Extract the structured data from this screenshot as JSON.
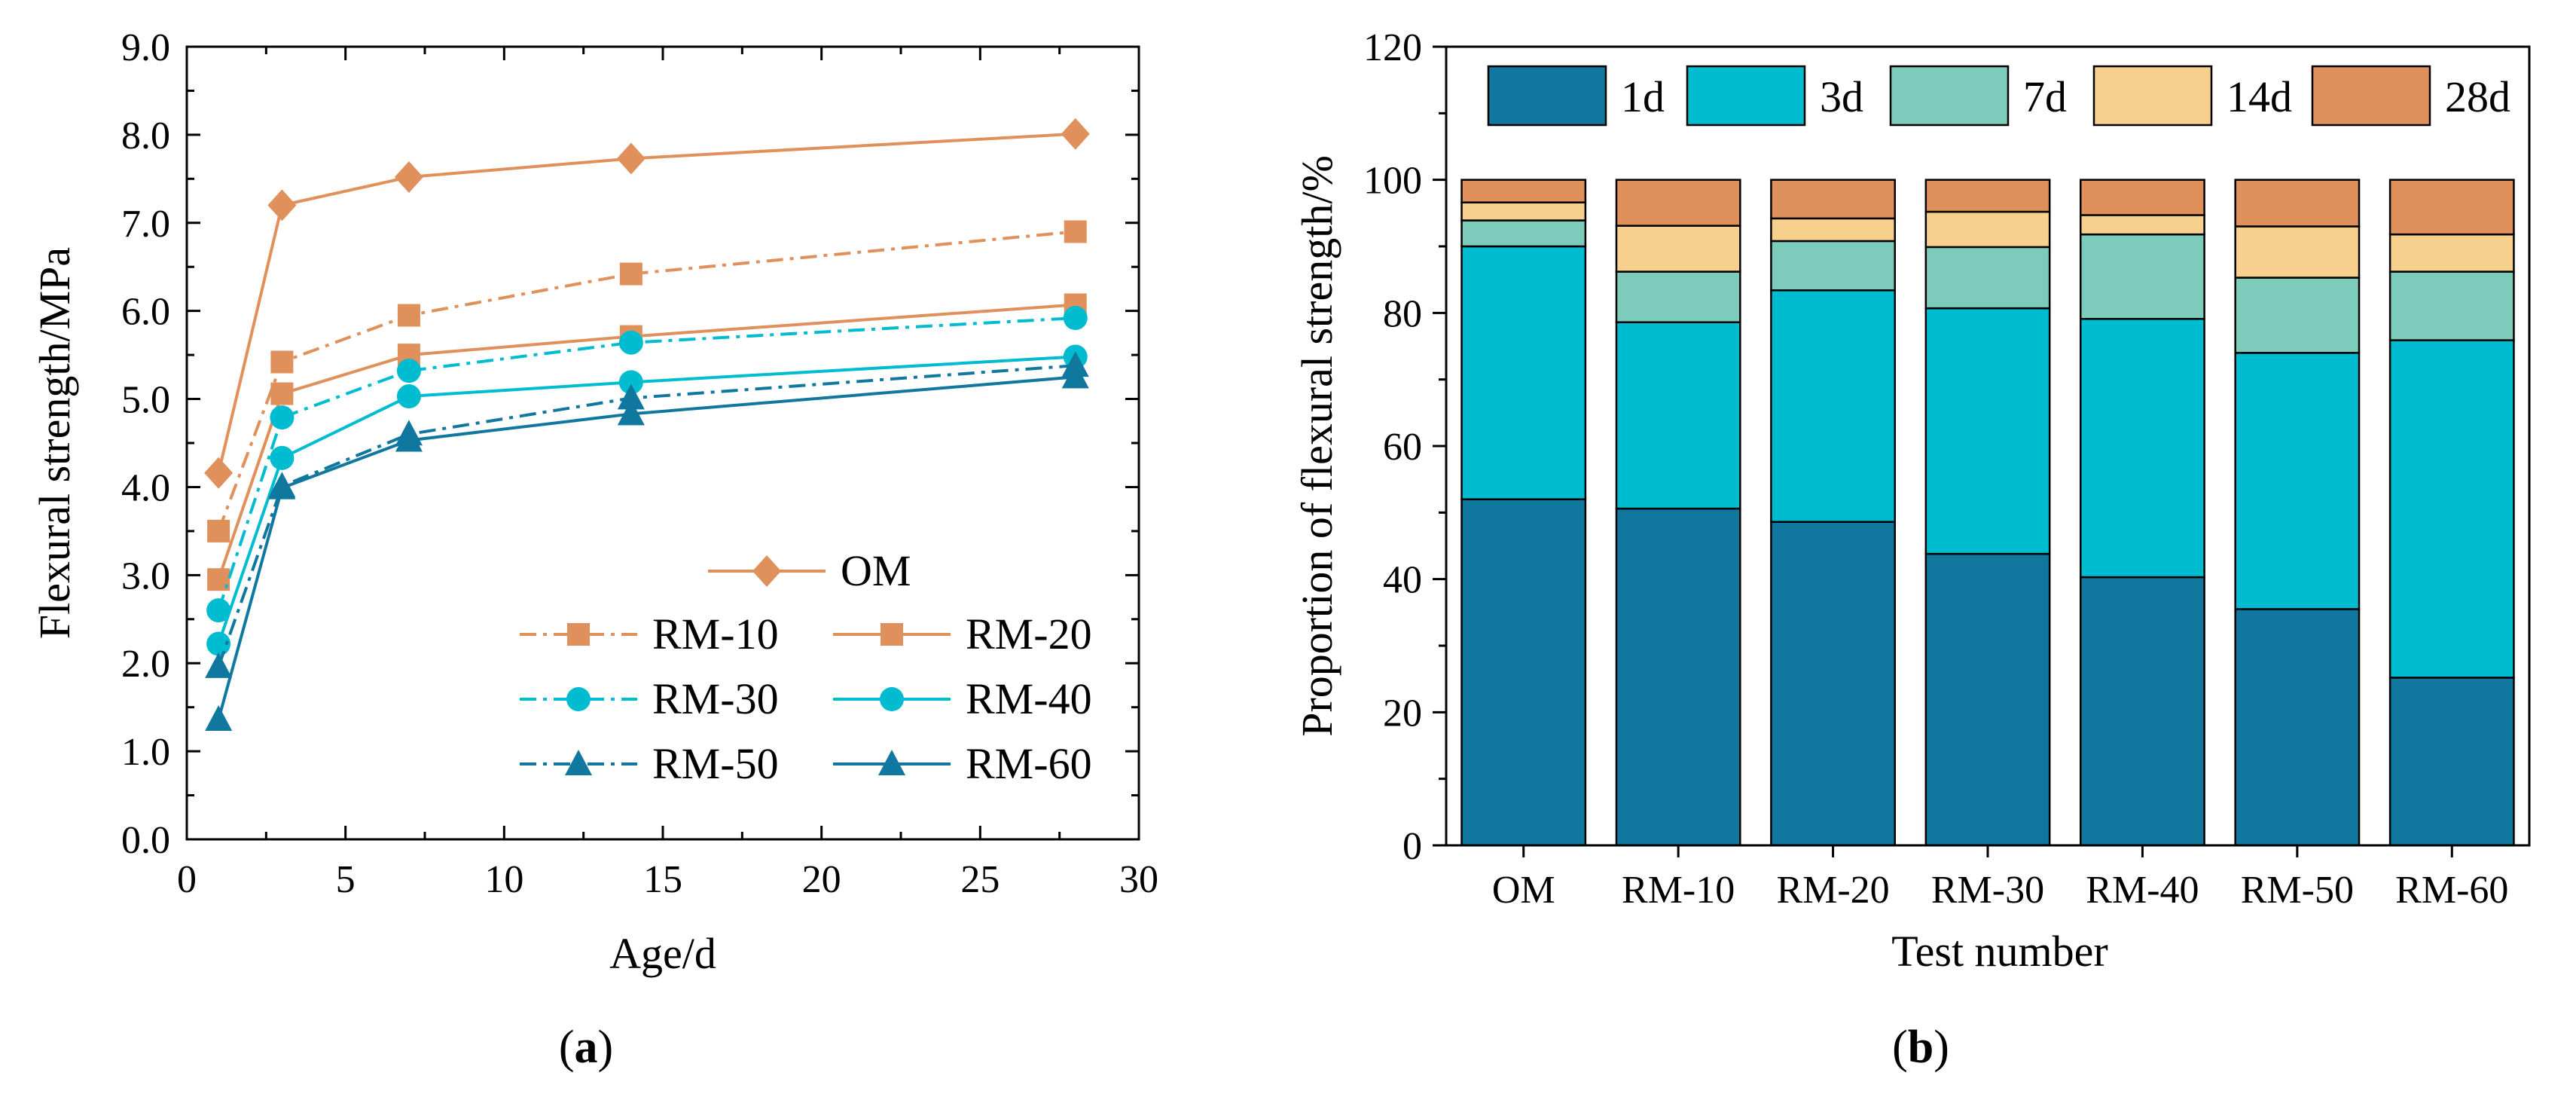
{
  "chart_data": [
    {
      "type": "line",
      "caption": {
        "open": "(",
        "letter": "a",
        "close": ")"
      },
      "xlabel": "Age/d",
      "ylabel": "Flexural strength/MPa",
      "xlim": [
        0,
        30
      ],
      "ylim": [
        0,
        9
      ],
      "xticks": [
        "0",
        "5",
        "10",
        "15",
        "20",
        "25",
        "30"
      ],
      "yticks": [
        "0.0",
        "1.0",
        "2.0",
        "3.0",
        "4.0",
        "5.0",
        "6.0",
        "7.0",
        "8.0",
        "9.0"
      ],
      "x": [
        1,
        3,
        7,
        14,
        28
      ],
      "series": [
        {
          "name": "OM",
          "values": [
            4.16,
            7.2,
            7.52,
            7.73,
            8.01
          ],
          "color": "#E0905A",
          "marker": "diamond",
          "dash": "solid"
        },
        {
          "name": "RM-10",
          "values": [
            3.5,
            5.42,
            5.95,
            6.42,
            6.9
          ],
          "color": "#E0905A",
          "marker": "square",
          "dash": "dashdot"
        },
        {
          "name": "RM-20",
          "values": [
            2.95,
            5.06,
            5.5,
            5.71,
            6.07
          ],
          "color": "#E0905A",
          "marker": "square",
          "dash": "solid"
        },
        {
          "name": "RM-30",
          "values": [
            2.6,
            4.79,
            5.32,
            5.64,
            5.92
          ],
          "color": "#00BCD0",
          "marker": "circle",
          "dash": "dashdot"
        },
        {
          "name": "RM-40",
          "values": [
            2.22,
            4.33,
            5.03,
            5.19,
            5.48
          ],
          "color": "#00BCD0",
          "marker": "circle",
          "dash": "solid"
        },
        {
          "name": "RM-50",
          "values": [
            1.96,
            4.01,
            4.6,
            5.01,
            5.38
          ],
          "color": "#10789E",
          "marker": "triangle",
          "dash": "dashdot"
        },
        {
          "name": "RM-60",
          "values": [
            1.36,
            3.99,
            4.53,
            4.83,
            5.25
          ],
          "color": "#10789E",
          "marker": "triangle",
          "dash": "solid"
        }
      ]
    },
    {
      "type": "bar",
      "stacked": true,
      "caption": {
        "open": "(",
        "letter": "b",
        "close": ")"
      },
      "xlabel": "Test number",
      "ylabel": "Proportion of flexural strength/%",
      "ylim": [
        0,
        120
      ],
      "yticks": [
        "0",
        "20",
        "40",
        "60",
        "80",
        "100",
        "120"
      ],
      "categories": [
        "OM",
        "RM-10",
        "RM-20",
        "RM-30",
        "RM-40",
        "RM-50",
        "RM-60"
      ],
      "series": [
        {
          "name": "1d",
          "color": "#10789E",
          "values": [
            52.0,
            50.6,
            48.6,
            43.8,
            40.3,
            35.5,
            25.2
          ]
        },
        {
          "name": "3d",
          "color": "#00BCD0",
          "values": [
            38.0,
            28.0,
            34.8,
            36.9,
            38.8,
            38.5,
            50.7
          ]
        },
        {
          "name": "7d",
          "color": "#7DCBBA",
          "values": [
            3.9,
            7.6,
            7.4,
            9.2,
            12.7,
            11.3,
            10.3
          ]
        },
        {
          "name": "14d",
          "color": "#F8D08E",
          "values": [
            2.7,
            6.9,
            3.4,
            5.3,
            2.9,
            7.7,
            5.6
          ]
        },
        {
          "name": "28d",
          "color": "#E0905A",
          "values": [
            3.4,
            6.9,
            5.8,
            4.8,
            5.3,
            7.0,
            8.2
          ]
        }
      ]
    }
  ]
}
